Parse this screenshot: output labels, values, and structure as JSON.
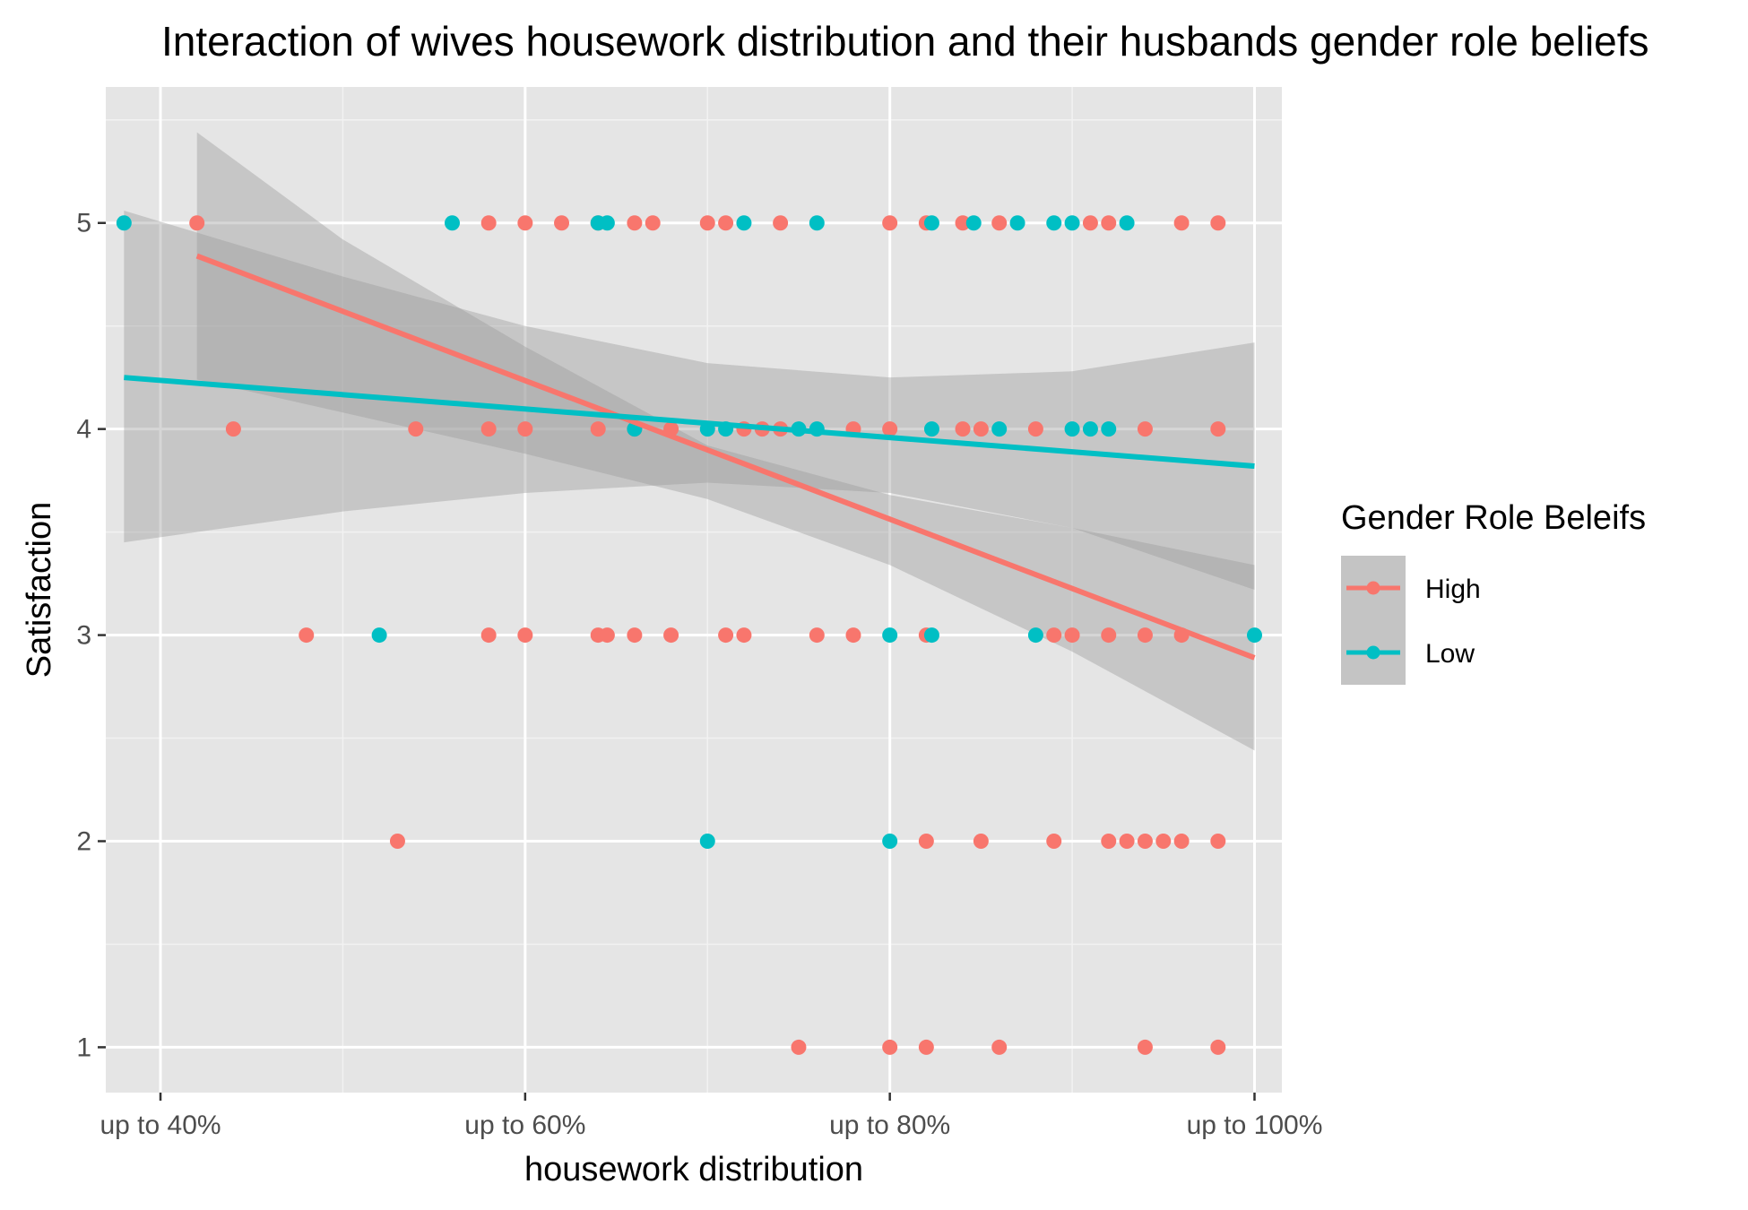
{
  "chart_data": {
    "type": "scatter",
    "title": "Interaction of wives housework distribution and their husbands gender role beliefs",
    "xlabel": "housework distribution",
    "ylabel": "Satisfaction",
    "xlim": [
      0.37,
      1.015
    ],
    "ylim": [
      0.78,
      5.66
    ],
    "x_ticks": [
      {
        "value": 0.4,
        "label": "up to 40%"
      },
      {
        "value": 0.6,
        "label": "up to 60%"
      },
      {
        "value": 0.8,
        "label": "up to 80%"
      },
      {
        "value": 1.0,
        "label": "up to 100%"
      }
    ],
    "x_minor_ticks": [
      0.5,
      0.7,
      0.9
    ],
    "y_ticks": [
      {
        "value": 1,
        "label": "1"
      },
      {
        "value": 2,
        "label": "2"
      },
      {
        "value": 3,
        "label": "3"
      },
      {
        "value": 4,
        "label": "4"
      },
      {
        "value": 5,
        "label": "5"
      }
    ],
    "y_minor_ticks": [
      1.5,
      2.5,
      3.5,
      4.5,
      5.5
    ],
    "grid": true,
    "panel_background": "#e5e5e5",
    "legend": {
      "title": "Gender Role Beleifs",
      "placement": "right",
      "entries": [
        "High",
        "Low"
      ]
    },
    "series": [
      {
        "name": "High",
        "color": "#f8766d",
        "points": [
          [
            0.42,
            5
          ],
          [
            0.58,
            5
          ],
          [
            0.6,
            5
          ],
          [
            0.62,
            5
          ],
          [
            0.64,
            5
          ],
          [
            0.66,
            5
          ],
          [
            0.67,
            5
          ],
          [
            0.7,
            5
          ],
          [
            0.71,
            5
          ],
          [
            0.74,
            5
          ],
          [
            0.8,
            5
          ],
          [
            0.82,
            5
          ],
          [
            0.84,
            5
          ],
          [
            0.86,
            5
          ],
          [
            0.91,
            5
          ],
          [
            0.92,
            5
          ],
          [
            0.96,
            5
          ],
          [
            0.98,
            5
          ],
          [
            0.44,
            4
          ],
          [
            0.54,
            4
          ],
          [
            0.58,
            4
          ],
          [
            0.6,
            4
          ],
          [
            0.64,
            4
          ],
          [
            0.66,
            4
          ],
          [
            0.68,
            4
          ],
          [
            0.72,
            4
          ],
          [
            0.73,
            4
          ],
          [
            0.74,
            4
          ],
          [
            0.78,
            4
          ],
          [
            0.8,
            4
          ],
          [
            0.84,
            4
          ],
          [
            0.85,
            4
          ],
          [
            0.88,
            4
          ],
          [
            0.94,
            4
          ],
          [
            0.98,
            4
          ],
          [
            0.48,
            3
          ],
          [
            0.58,
            3
          ],
          [
            0.6,
            3
          ],
          [
            0.64,
            3
          ],
          [
            0.645,
            3
          ],
          [
            0.66,
            3
          ],
          [
            0.68,
            3
          ],
          [
            0.71,
            3
          ],
          [
            0.72,
            3
          ],
          [
            0.76,
            3
          ],
          [
            0.78,
            3
          ],
          [
            0.82,
            3
          ],
          [
            0.89,
            3
          ],
          [
            0.9,
            3
          ],
          [
            0.92,
            3
          ],
          [
            0.94,
            3
          ],
          [
            0.96,
            3
          ],
          [
            0.53,
            2
          ],
          [
            0.82,
            2
          ],
          [
            0.85,
            2
          ],
          [
            0.89,
            2
          ],
          [
            0.92,
            2
          ],
          [
            0.93,
            2
          ],
          [
            0.94,
            2
          ],
          [
            0.95,
            2
          ],
          [
            0.96,
            2
          ],
          [
            0.98,
            2
          ],
          [
            0.75,
            1
          ],
          [
            0.8,
            1
          ],
          [
            0.82,
            1
          ],
          [
            0.86,
            1
          ],
          [
            0.94,
            1
          ],
          [
            0.98,
            1
          ]
        ],
        "trend": {
          "x": [
            0.42,
            1.0
          ],
          "y": [
            4.84,
            2.89
          ]
        },
        "band": {
          "x": [
            0.42,
            0.5,
            0.6,
            0.7,
            0.8,
            0.9,
            1.0
          ],
          "lower": [
            4.24,
            4.08,
            3.88,
            3.66,
            3.34,
            2.92,
            2.44
          ],
          "upper": [
            5.44,
            4.92,
            4.4,
            3.92,
            3.68,
            3.52,
            3.34
          ]
        }
      },
      {
        "name": "Low",
        "color": "#00bfc4",
        "points": [
          [
            0.38,
            5
          ],
          [
            0.56,
            5
          ],
          [
            0.64,
            5
          ],
          [
            0.645,
            5
          ],
          [
            0.72,
            5
          ],
          [
            0.76,
            5
          ],
          [
            0.823,
            5
          ],
          [
            0.846,
            5
          ],
          [
            0.87,
            5
          ],
          [
            0.89,
            5
          ],
          [
            0.9,
            5
          ],
          [
            0.93,
            5
          ],
          [
            0.66,
            4
          ],
          [
            0.7,
            4
          ],
          [
            0.71,
            4
          ],
          [
            0.75,
            4
          ],
          [
            0.76,
            4
          ],
          [
            0.823,
            4
          ],
          [
            0.86,
            4
          ],
          [
            0.9,
            4
          ],
          [
            0.91,
            4
          ],
          [
            0.92,
            4
          ],
          [
            0.52,
            3
          ],
          [
            0.8,
            3
          ],
          [
            0.823,
            3
          ],
          [
            0.88,
            3
          ],
          [
            1.0,
            3
          ],
          [
            0.7,
            2
          ],
          [
            0.8,
            2
          ]
        ],
        "trend": {
          "x": [
            0.38,
            1.0
          ],
          "y": [
            4.25,
            3.82
          ]
        },
        "band": {
          "x": [
            0.38,
            0.5,
            0.6,
            0.7,
            0.8,
            0.9,
            1.0
          ],
          "lower": [
            3.45,
            3.6,
            3.69,
            3.74,
            3.69,
            3.52,
            3.22
          ],
          "upper": [
            5.06,
            4.74,
            4.5,
            4.32,
            4.25,
            4.28,
            4.42
          ]
        }
      }
    ]
  }
}
